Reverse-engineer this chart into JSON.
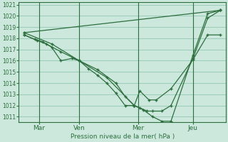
{
  "xlabel": "Pression niveau de la mer( hPa )",
  "bg_color": "#cce8dc",
  "grid_color": "#99ccb8",
  "line_color": "#2d6e3e",
  "spine_color": "#2d6e3e",
  "ylim": [
    1010.5,
    1021.2
  ],
  "yticks": [
    1011,
    1012,
    1013,
    1014,
    1015,
    1016,
    1017,
    1018,
    1019,
    1020,
    1021
  ],
  "xlim": [
    -0.3,
    11.0
  ],
  "day_positions": [
    0.8,
    3.0,
    6.2,
    9.2
  ],
  "day_labels": [
    "Mar",
    "Ven",
    "Mer",
    "Jeu"
  ],
  "vline_positions": [
    0.8,
    3.0,
    6.2,
    9.2
  ],
  "series": [
    {
      "x": [
        0.0,
        10.7
      ],
      "y": [
        1018.5,
        1020.5
      ]
    },
    {
      "x": [
        0.0,
        0.6,
        1.0,
        1.5,
        2.0,
        2.6,
        3.0,
        3.5,
        4.0,
        4.5,
        5.0,
        5.5,
        6.0,
        6.3,
        6.8,
        7.2,
        8.0,
        9.2,
        10.0,
        10.7
      ],
      "y": [
        1018.3,
        1017.9,
        1017.7,
        1017.2,
        1016.0,
        1016.2,
        1016.0,
        1015.3,
        1014.7,
        1014.0,
        1013.1,
        1012.0,
        1012.0,
        1013.3,
        1012.5,
        1012.5,
        1013.5,
        1016.1,
        1018.3,
        1018.3
      ]
    },
    {
      "x": [
        0.0,
        0.7,
        1.2,
        2.0,
        3.0,
        4.0,
        5.0,
        5.5,
        6.0,
        6.3,
        6.7,
        7.0,
        7.5,
        8.0,
        9.2,
        10.0,
        10.7
      ],
      "y": [
        1018.3,
        1017.8,
        1017.5,
        1016.8,
        1016.0,
        1015.2,
        1014.0,
        1012.8,
        1012.0,
        1011.8,
        1011.5,
        1011.5,
        1011.5,
        1012.0,
        1016.2,
        1019.8,
        1020.5
      ]
    },
    {
      "x": [
        0.0,
        1.5,
        3.0,
        4.5,
        6.0,
        6.5,
        7.0,
        7.5,
        8.0,
        9.2,
        10.0,
        10.7
      ],
      "y": [
        1018.5,
        1017.5,
        1016.0,
        1014.5,
        1012.0,
        1011.6,
        1011.0,
        1010.6,
        1010.6,
        1016.5,
        1020.2,
        1020.5
      ]
    }
  ]
}
